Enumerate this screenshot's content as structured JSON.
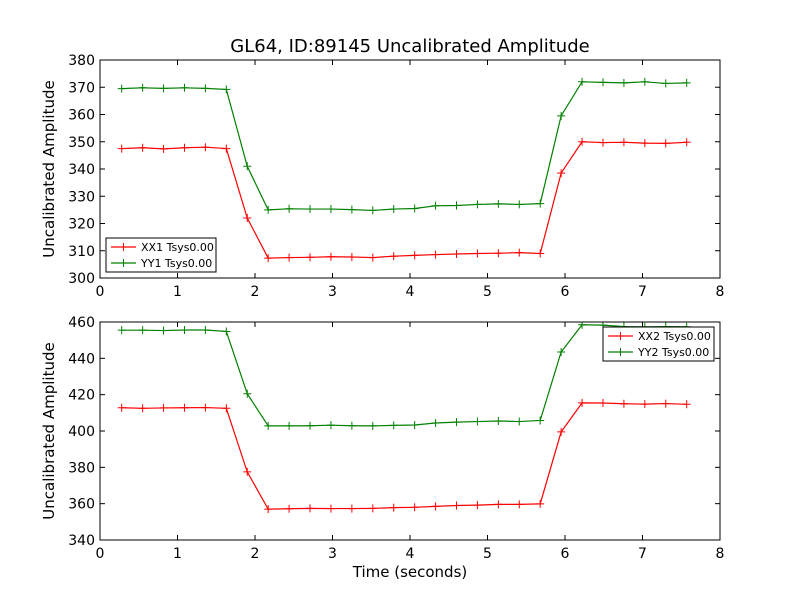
{
  "chart_data": {
    "type": "line",
    "title": "GL64, ID:89145 Uncalibrated Amplitude",
    "xlabel": "Time (seconds)",
    "panels": [
      {
        "ylabel": "Uncalibrated Amplitude",
        "xlim": [
          0,
          8
        ],
        "ylim": [
          300,
          380
        ],
        "xticks": [
          0,
          1,
          2,
          3,
          4,
          5,
          6,
          7,
          8
        ],
        "yticks": [
          300,
          310,
          320,
          330,
          340,
          350,
          360,
          370,
          380
        ],
        "legend_position": "lower-left",
        "x": [
          0.28,
          0.55,
          0.82,
          1.09,
          1.36,
          1.63,
          1.9,
          2.17,
          2.44,
          2.71,
          2.98,
          3.25,
          3.52,
          3.79,
          4.06,
          4.33,
          4.6,
          4.87,
          5.14,
          5.41,
          5.68,
          5.95,
          6.22,
          6.49,
          6.76,
          7.03,
          7.3,
          7.57
        ],
        "series": [
          {
            "name": "XX1 Tsys0.00",
            "color": "#ff0000",
            "values": [
              347.5,
              347.8,
              347.4,
              347.8,
              348.0,
              347.5,
              322.0,
              307.3,
              307.5,
              307.6,
              307.8,
              307.7,
              307.5,
              308.0,
              308.3,
              308.6,
              308.8,
              309.0,
              309.1,
              309.3,
              309.0,
              338.5,
              350.0,
              349.7,
              349.8,
              349.5,
              349.4,
              349.8
            ]
          },
          {
            "name": "YY1 Tsys0.00",
            "color": "#008000",
            "values": [
              369.5,
              369.8,
              369.6,
              369.8,
              369.6,
              369.2,
              341.0,
              325.0,
              325.4,
              325.3,
              325.3,
              325.1,
              324.8,
              325.3,
              325.5,
              326.5,
              326.6,
              327.0,
              327.2,
              327.0,
              327.3,
              359.5,
              372.0,
              371.8,
              371.6,
              372.0,
              371.4,
              371.6
            ]
          }
        ]
      },
      {
        "ylabel": "Uncalibrated Amplitude",
        "xlim": [
          0,
          8
        ],
        "ylim": [
          340,
          460
        ],
        "xticks": [
          0,
          1,
          2,
          3,
          4,
          5,
          6,
          7,
          8
        ],
        "yticks": [
          340,
          360,
          380,
          400,
          420,
          440,
          460
        ],
        "legend_position": "upper-right",
        "x": [
          0.28,
          0.55,
          0.82,
          1.09,
          1.36,
          1.63,
          1.9,
          2.17,
          2.44,
          2.71,
          2.98,
          3.25,
          3.52,
          3.79,
          4.06,
          4.33,
          4.6,
          4.87,
          5.14,
          5.41,
          5.68,
          5.95,
          6.22,
          6.49,
          6.76,
          7.03,
          7.3,
          7.57
        ],
        "series": [
          {
            "name": "XX2 Tsys0.00",
            "color": "#ff0000",
            "values": [
              412.8,
              412.5,
              412.7,
              412.8,
              412.9,
              412.5,
              377.5,
              357.0,
              357.2,
              357.4,
              357.3,
              357.3,
              357.4,
              357.8,
              358.0,
              358.5,
              359.0,
              359.2,
              359.6,
              359.6,
              359.9,
              399.5,
              415.5,
              415.4,
              415.0,
              414.8,
              415.1,
              414.7
            ]
          },
          {
            "name": "YY2 Tsys0.00",
            "color": "#008000",
            "values": [
              455.5,
              455.5,
              455.3,
              455.6,
              455.6,
              454.8,
              420.5,
              402.8,
              402.8,
              402.9,
              403.2,
              402.9,
              402.8,
              403.1,
              403.3,
              404.4,
              404.9,
              405.2,
              405.5,
              405.2,
              405.8,
              443.5,
              458.5,
              458.3,
              457.5,
              457.3,
              457.5,
              457.4
            ]
          }
        ]
      }
    ]
  }
}
